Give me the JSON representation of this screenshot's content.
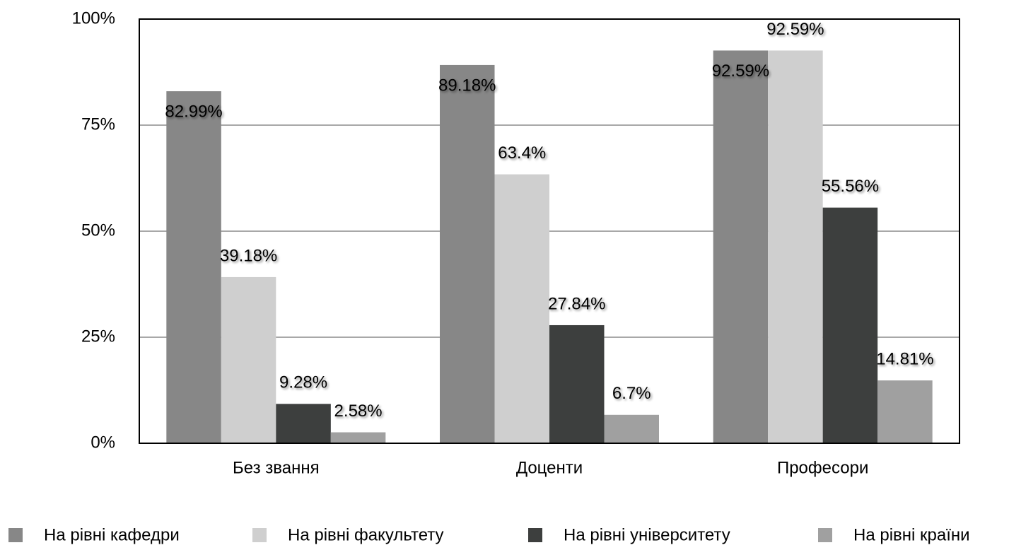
{
  "chart_data": {
    "type": "bar",
    "categories": [
      "Без звання",
      "Доценти",
      "Професори"
    ],
    "series": [
      {
        "name": "На рівні кафедри",
        "color": "#878787",
        "values": [
          82.99,
          89.18,
          92.59
        ],
        "value_labels": [
          "82.99%",
          "89.18%",
          "92.59%"
        ]
      },
      {
        "name": "На рівні факультету",
        "color": "#cfcfcf",
        "values": [
          39.18,
          63.4,
          92.59
        ],
        "value_labels": [
          "39.18%",
          "63.4%",
          "92.59%"
        ]
      },
      {
        "name": "На рівні університету",
        "color": "#3d3f3e",
        "values": [
          9.28,
          27.84,
          55.56
        ],
        "value_labels": [
          "9.28%",
          "27.84%",
          "55.56%"
        ]
      },
      {
        "name": "На рівні країни",
        "color": "#a0a0a0",
        "values": [
          2.58,
          6.7,
          14.81
        ],
        "value_labels": [
          "2.58%",
          "6.7%",
          "14.81%"
        ]
      }
    ],
    "ylim": [
      0,
      100
    ],
    "yticks": [
      {
        "value": 0,
        "label": "0%"
      },
      {
        "value": 25,
        "label": "25%"
      },
      {
        "value": 50,
        "label": "50%"
      },
      {
        "value": 75,
        "label": "75%"
      },
      {
        "value": 100,
        "label": "100%"
      }
    ],
    "grid": true,
    "legend": "bottom"
  }
}
